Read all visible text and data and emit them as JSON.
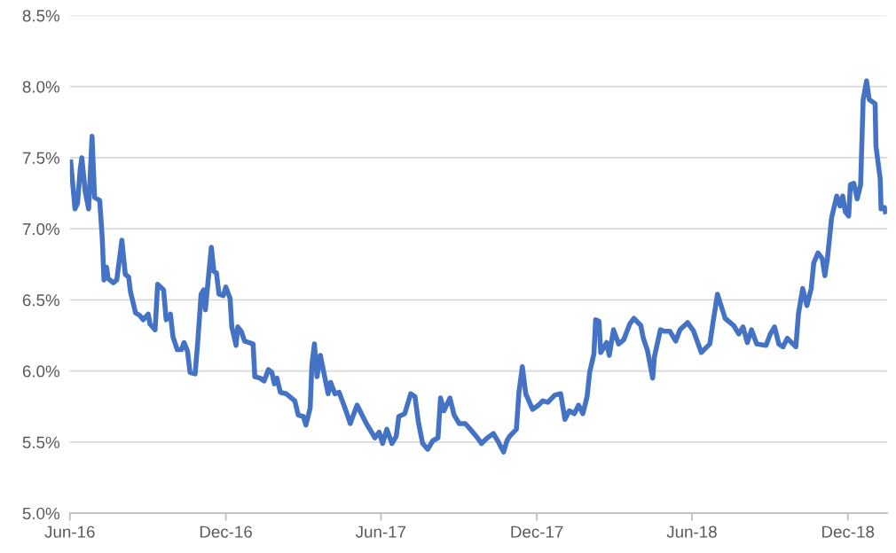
{
  "chart_data": {
    "type": "line",
    "grid": "y",
    "line_style": "solid",
    "marker": "none",
    "legend": false,
    "xlim": [
      "2016-06-01",
      "2019-01-16"
    ],
    "xticks": [
      {
        "value": "2016-06-01",
        "label": "Jun-16"
      },
      {
        "value": "2016-12-01",
        "label": "Dec-16"
      },
      {
        "value": "2017-06-01",
        "label": "Jun-17"
      },
      {
        "value": "2017-12-01",
        "label": "Dec-17"
      },
      {
        "value": "2018-06-01",
        "label": "Jun-18"
      },
      {
        "value": "2018-12-01",
        "label": "Dec-18"
      }
    ],
    "ylim": [
      5.0,
      8.5
    ],
    "yticks": [
      {
        "value": 5.0,
        "label": "5.0%"
      },
      {
        "value": 5.5,
        "label": "5.5%"
      },
      {
        "value": 6.0,
        "label": "6.0%"
      },
      {
        "value": 6.5,
        "label": "6.5%"
      },
      {
        "value": 7.0,
        "label": "7.0%"
      },
      {
        "value": 7.5,
        "label": "7.5%"
      },
      {
        "value": 8.0,
        "label": "8.0%"
      },
      {
        "value": 8.5,
        "label": "8.5%"
      }
    ],
    "series": [
      {
        "color": "#4472c4",
        "x": [
          "2016-06-02",
          "2016-06-07",
          "2016-06-10",
          "2016-06-13",
          "2016-06-15",
          "2016-06-19",
          "2016-06-23",
          "2016-06-27",
          "2016-06-30",
          "2016-07-06",
          "2016-07-09",
          "2016-07-11",
          "2016-07-14",
          "2016-07-16",
          "2016-07-22",
          "2016-07-26",
          "2016-08-01",
          "2016-08-05",
          "2016-08-09",
          "2016-08-11",
          "2016-08-17",
          "2016-08-22",
          "2016-08-26",
          "2016-09-01",
          "2016-09-03",
          "2016-09-09",
          "2016-09-12",
          "2016-09-19",
          "2016-09-22",
          "2016-09-27",
          "2016-09-30",
          "2016-10-05",
          "2016-10-10",
          "2016-10-13",
          "2016-10-17",
          "2016-10-20",
          "2016-10-26",
          "2016-10-29",
          "2016-11-02",
          "2016-11-05",
          "2016-11-07",
          "2016-11-10",
          "2016-11-14",
          "2016-11-17",
          "2016-11-20",
          "2016-11-23",
          "2016-11-28",
          "2016-12-01",
          "2016-12-06",
          "2016-12-08",
          "2016-12-13",
          "2016-12-15",
          "2016-12-19",
          "2016-12-23",
          "2017-01-02",
          "2017-01-04",
          "2017-01-10",
          "2017-01-15",
          "2017-01-20",
          "2017-01-24",
          "2017-01-27",
          "2017-01-30",
          "2017-02-03",
          "2017-02-10",
          "2017-02-20",
          "2017-02-24",
          "2017-03-02",
          "2017-03-05",
          "2017-03-10",
          "2017-03-12",
          "2017-03-15",
          "2017-03-18",
          "2017-03-22",
          "2017-03-26",
          "2017-03-31",
          "2017-04-03",
          "2017-04-08",
          "2017-04-13",
          "2017-04-21",
          "2017-04-26",
          "2017-05-04",
          "2017-05-15",
          "2017-05-25",
          "2017-05-30",
          "2017-06-03",
          "2017-06-08",
          "2017-06-14",
          "2017-06-19",
          "2017-06-22",
          "2017-06-29",
          "2017-07-06",
          "2017-07-11",
          "2017-07-15",
          "2017-07-20",
          "2017-07-26",
          "2017-08-01",
          "2017-08-07",
          "2017-08-10",
          "2017-08-14",
          "2017-08-21",
          "2017-08-26",
          "2017-09-01",
          "2017-09-08",
          "2017-09-14",
          "2017-09-21",
          "2017-09-27",
          "2017-10-04",
          "2017-10-11",
          "2017-10-16",
          "2017-10-23",
          "2017-10-27",
          "2017-10-30",
          "2017-11-07",
          "2017-11-10",
          "2017-11-14",
          "2017-11-18",
          "2017-11-26",
          "2017-12-03",
          "2017-12-08",
          "2017-12-14",
          "2017-12-22",
          "2017-12-29",
          "2018-01-03",
          "2018-01-08",
          "2018-01-14",
          "2018-01-19",
          "2018-01-24",
          "2018-01-29",
          "2018-02-01",
          "2018-02-06",
          "2018-02-08",
          "2018-02-12",
          "2018-02-14",
          "2018-02-21",
          "2018-02-24",
          "2018-03-01",
          "2018-03-07",
          "2018-03-13",
          "2018-03-20",
          "2018-03-25",
          "2018-04-02",
          "2018-04-05",
          "2018-04-10",
          "2018-04-16",
          "2018-04-18",
          "2018-04-25",
          "2018-04-29",
          "2018-05-06",
          "2018-05-13",
          "2018-05-18",
          "2018-05-27",
          "2018-06-03",
          "2018-06-12",
          "2018-06-22",
          "2018-06-26",
          "2018-07-01",
          "2018-07-10",
          "2018-07-20",
          "2018-07-26",
          "2018-07-31",
          "2018-08-05",
          "2018-08-10",
          "2018-08-16",
          "2018-08-27",
          "2018-09-01",
          "2018-09-06",
          "2018-09-11",
          "2018-09-16",
          "2018-09-21",
          "2018-10-01",
          "2018-10-04",
          "2018-10-09",
          "2018-10-14",
          "2018-10-19",
          "2018-10-22",
          "2018-10-27",
          "2018-11-01",
          "2018-11-04",
          "2018-11-07",
          "2018-11-12",
          "2018-11-18",
          "2018-11-22",
          "2018-11-25",
          "2018-11-28",
          "2018-12-02",
          "2018-12-04",
          "2018-12-08",
          "2018-12-12",
          "2018-12-16",
          "2018-12-19",
          "2018-12-23",
          "2018-12-26",
          "2019-01-02",
          "2019-01-03",
          "2019-01-08",
          "2019-01-09",
          "2019-01-13",
          "2019-01-14"
        ],
        "values": [
          7.47,
          7.14,
          7.18,
          7.41,
          7.5,
          7.26,
          7.14,
          7.65,
          7.22,
          7.2,
          6.93,
          6.64,
          6.73,
          6.65,
          6.62,
          6.64,
          6.92,
          6.68,
          6.66,
          6.56,
          6.41,
          6.39,
          6.36,
          6.4,
          6.33,
          6.29,
          6.61,
          6.57,
          6.36,
          6.4,
          6.24,
          6.15,
          6.15,
          6.2,
          6.14,
          5.99,
          5.98,
          6.2,
          6.54,
          6.57,
          6.43,
          6.62,
          6.87,
          6.7,
          6.69,
          6.54,
          6.53,
          6.59,
          6.51,
          6.31,
          6.18,
          6.31,
          6.28,
          6.21,
          6.19,
          5.96,
          5.95,
          5.93,
          6.01,
          5.99,
          5.91,
          5.95,
          5.85,
          5.84,
          5.79,
          5.69,
          5.68,
          5.62,
          5.74,
          6.04,
          6.19,
          5.96,
          6.11,
          5.99,
          5.84,
          5.92,
          5.84,
          5.85,
          5.72,
          5.63,
          5.76,
          5.63,
          5.53,
          5.57,
          5.49,
          5.59,
          5.49,
          5.54,
          5.68,
          5.7,
          5.84,
          5.82,
          5.64,
          5.49,
          5.45,
          5.51,
          5.53,
          5.81,
          5.72,
          5.81,
          5.69,
          5.63,
          5.63,
          5.59,
          5.54,
          5.49,
          5.53,
          5.56,
          5.51,
          5.43,
          5.51,
          5.54,
          5.59,
          5.85,
          6.03,
          5.84,
          5.73,
          5.76,
          5.79,
          5.78,
          5.83,
          5.84,
          5.66,
          5.72,
          5.7,
          5.76,
          5.7,
          5.82,
          5.99,
          6.12,
          6.36,
          6.35,
          6.13,
          6.2,
          6.11,
          6.29,
          6.19,
          6.22,
          6.33,
          6.37,
          6.32,
          6.23,
          6.14,
          5.95,
          6.1,
          6.29,
          6.28,
          6.28,
          6.21,
          6.29,
          6.34,
          6.28,
          6.13,
          6.19,
          6.35,
          6.54,
          6.37,
          6.32,
          6.26,
          6.31,
          6.2,
          6.29,
          6.19,
          6.18,
          6.26,
          6.31,
          6.19,
          6.17,
          6.23,
          6.17,
          6.4,
          6.58,
          6.46,
          6.58,
          6.76,
          6.83,
          6.79,
          6.67,
          6.79,
          7.08,
          7.23,
          7.16,
          7.23,
          7.12,
          7.09,
          7.31,
          7.32,
          7.21,
          7.31,
          7.91,
          8.04,
          7.91,
          7.88,
          7.58,
          7.35,
          7.14,
          7.15,
          7.12
        ]
      }
    ]
  }
}
